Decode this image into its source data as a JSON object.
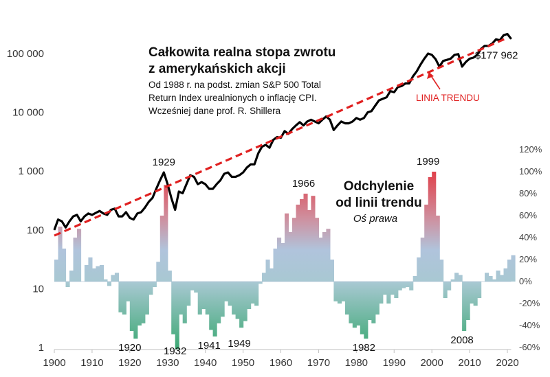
{
  "chart_data": {
    "type": "line",
    "title": "Całkowita realna stopa zwrotu",
    "title_line2": "z amerykańskich akcji",
    "description": [
      "Od 1988 r. na podst. zmian S&P 500 Total",
      "Return Index urealnionych o inflację CPI.",
      "Wcześniej dane prof. R. Shillera"
    ],
    "x_ticks": [
      "1900",
      "1910",
      "1920",
      "1930",
      "1940",
      "1950",
      "1960",
      "1970",
      "1980",
      "1990",
      "2000",
      "2010",
      "2020"
    ],
    "xlim": [
      1900,
      2021
    ],
    "y_left": {
      "scale": "log",
      "ylim": [
        1,
        300000
      ],
      "ticks": [
        {
          "value": 1,
          "label": "1"
        },
        {
          "value": 10,
          "label": "10"
        },
        {
          "value": 100,
          "label": "100"
        },
        {
          "value": 1000,
          "label": "1 000"
        },
        {
          "value": 10000,
          "label": "10 000"
        },
        {
          "value": 100000,
          "label": "100 000"
        }
      ]
    },
    "y_right": {
      "ylim": [
        -60,
        120
      ],
      "ticks": [
        {
          "value": -60,
          "label": "-60%"
        },
        {
          "value": -40,
          "label": "-40%"
        },
        {
          "value": -20,
          "label": "-20%"
        },
        {
          "value": 0,
          "label": "0%"
        },
        {
          "value": 20,
          "label": "20%"
        },
        {
          "value": 40,
          "label": "40%"
        },
        {
          "value": 60,
          "label": "60%"
        },
        {
          "value": 80,
          "label": "80%"
        },
        {
          "value": 100,
          "label": "100%"
        },
        {
          "value": 120,
          "label": "120%"
        }
      ]
    },
    "trend_line": {
      "label": "LINIA TRENDU",
      "x": [
        1900,
        2020
      ],
      "y": [
        80,
        185000
      ],
      "color": "#e02020"
    },
    "deviation_series": {
      "title": "Odchylenie",
      "title_line2": "od linii trendu",
      "subtitle": "Oś prawa",
      "colors": {
        "high": "#e0404a",
        "mid": "#b0c4dc",
        "low": "#3aa872"
      },
      "points": [
        [
          1900,
          20
        ],
        [
          1901,
          50
        ],
        [
          1902,
          30
        ],
        [
          1903,
          -5
        ],
        [
          1904,
          10
        ],
        [
          1905,
          40
        ],
        [
          1906,
          48
        ],
        [
          1907,
          0
        ],
        [
          1908,
          15
        ],
        [
          1909,
          22
        ],
        [
          1910,
          12
        ],
        [
          1911,
          14
        ],
        [
          1912,
          15
        ],
        [
          1913,
          2
        ],
        [
          1914,
          -4
        ],
        [
          1915,
          6
        ],
        [
          1916,
          8
        ],
        [
          1917,
          -28
        ],
        [
          1918,
          -30
        ],
        [
          1919,
          -18
        ],
        [
          1920,
          -45
        ],
        [
          1921,
          -52
        ],
        [
          1922,
          -40
        ],
        [
          1923,
          -38
        ],
        [
          1924,
          -30
        ],
        [
          1925,
          -12
        ],
        [
          1926,
          -5
        ],
        [
          1927,
          18
        ],
        [
          1928,
          60
        ],
        [
          1929,
          88
        ],
        [
          1930,
          10
        ],
        [
          1931,
          -48
        ],
        [
          1932,
          -62
        ],
        [
          1933,
          -30
        ],
        [
          1934,
          -38
        ],
        [
          1935,
          -22
        ],
        [
          1936,
          -8
        ],
        [
          1937,
          -10
        ],
        [
          1938,
          -30
        ],
        [
          1939,
          -25
        ],
        [
          1940,
          -30
        ],
        [
          1941,
          -44
        ],
        [
          1942,
          -50
        ],
        [
          1943,
          -38
        ],
        [
          1944,
          -32
        ],
        [
          1945,
          -18
        ],
        [
          1946,
          -22
        ],
        [
          1947,
          -30
        ],
        [
          1948,
          -34
        ],
        [
          1949,
          -42
        ],
        [
          1950,
          -36
        ],
        [
          1951,
          -25
        ],
        [
          1952,
          -20
        ],
        [
          1953,
          -22
        ],
        [
          1954,
          -2
        ],
        [
          1955,
          8
        ],
        [
          1956,
          20
        ],
        [
          1957,
          12
        ],
        [
          1958,
          30
        ],
        [
          1959,
          40
        ],
        [
          1960,
          35
        ],
        [
          1961,
          62
        ],
        [
          1962,
          45
        ],
        [
          1963,
          58
        ],
        [
          1964,
          70
        ],
        [
          1965,
          75
        ],
        [
          1966,
          80
        ],
        [
          1967,
          65
        ],
        [
          1968,
          78
        ],
        [
          1969,
          58
        ],
        [
          1970,
          40
        ],
        [
          1971,
          45
        ],
        [
          1972,
          48
        ],
        [
          1973,
          20
        ],
        [
          1974,
          -18
        ],
        [
          1975,
          -20
        ],
        [
          1976,
          -18
        ],
        [
          1977,
          -30
        ],
        [
          1978,
          -38
        ],
        [
          1979,
          -42
        ],
        [
          1980,
          -40
        ],
        [
          1981,
          -48
        ],
        [
          1982,
          -52
        ],
        [
          1983,
          -35
        ],
        [
          1984,
          -38
        ],
        [
          1985,
          -30
        ],
        [
          1986,
          -20
        ],
        [
          1987,
          -12
        ],
        [
          1988,
          -20
        ],
        [
          1989,
          -12
        ],
        [
          1990,
          -15
        ],
        [
          1991,
          -8
        ],
        [
          1992,
          -6
        ],
        [
          1993,
          -5
        ],
        [
          1994,
          -8
        ],
        [
          1995,
          5
        ],
        [
          1996,
          22
        ],
        [
          1997,
          40
        ],
        [
          1998,
          70
        ],
        [
          1999,
          95
        ],
        [
          2000,
          100
        ],
        [
          2001,
          60
        ],
        [
          2002,
          20
        ],
        [
          2003,
          -15
        ],
        [
          2004,
          -8
        ],
        [
          2005,
          2
        ],
        [
          2006,
          8
        ],
        [
          2007,
          6
        ],
        [
          2008,
          -45
        ],
        [
          2009,
          -35
        ],
        [
          2010,
          -20
        ],
        [
          2011,
          -22
        ],
        [
          2012,
          -15
        ],
        [
          2013,
          0
        ],
        [
          2014,
          8
        ],
        [
          2015,
          5
        ],
        [
          2016,
          2
        ],
        [
          2017,
          10
        ],
        [
          2018,
          6
        ],
        [
          2019,
          12
        ],
        [
          2020,
          20
        ],
        [
          2021,
          24
        ]
      ]
    },
    "real_return_series": {
      "color": "#000000",
      "points": [
        [
          1900,
          100
        ],
        [
          1901,
          150
        ],
        [
          1902,
          140
        ],
        [
          1903,
          110
        ],
        [
          1904,
          140
        ],
        [
          1905,
          170
        ],
        [
          1906,
          180
        ],
        [
          1907,
          140
        ],
        [
          1908,
          170
        ],
        [
          1909,
          190
        ],
        [
          1910,
          180
        ],
        [
          1911,
          195
        ],
        [
          1912,
          210
        ],
        [
          1913,
          190
        ],
        [
          1914,
          180
        ],
        [
          1915,
          220
        ],
        [
          1916,
          230
        ],
        [
          1917,
          170
        ],
        [
          1918,
          170
        ],
        [
          1919,
          200
        ],
        [
          1920,
          160
        ],
        [
          1921,
          150
        ],
        [
          1922,
          190
        ],
        [
          1923,
          200
        ],
        [
          1924,
          240
        ],
        [
          1925,
          300
        ],
        [
          1926,
          350
        ],
        [
          1927,
          500
        ],
        [
          1928,
          700
        ],
        [
          1929,
          950
        ],
        [
          1930,
          600
        ],
        [
          1931,
          350
        ],
        [
          1932,
          220
        ],
        [
          1933,
          450
        ],
        [
          1934,
          420
        ],
        [
          1935,
          600
        ],
        [
          1936,
          850
        ],
        [
          1937,
          800
        ],
        [
          1938,
          600
        ],
        [
          1939,
          650
        ],
        [
          1940,
          600
        ],
        [
          1941,
          500
        ],
        [
          1942,
          500
        ],
        [
          1943,
          600
        ],
        [
          1944,
          700
        ],
        [
          1945,
          900
        ],
        [
          1946,
          950
        ],
        [
          1947,
          800
        ],
        [
          1948,
          800
        ],
        [
          1949,
          850
        ],
        [
          1950,
          950
        ],
        [
          1951,
          1150
        ],
        [
          1952,
          1300
        ],
        [
          1953,
          1300
        ],
        [
          1954,
          2000
        ],
        [
          1955,
          2600
        ],
        [
          1956,
          2800
        ],
        [
          1957,
          2500
        ],
        [
          1958,
          3400
        ],
        [
          1959,
          3800
        ],
        [
          1960,
          3700
        ],
        [
          1961,
          4800
        ],
        [
          1962,
          4300
        ],
        [
          1963,
          5200
        ],
        [
          1964,
          6000
        ],
        [
          1965,
          6800
        ],
        [
          1966,
          6000
        ],
        [
          1967,
          7000
        ],
        [
          1968,
          7500
        ],
        [
          1969,
          7000
        ],
        [
          1970,
          6500
        ],
        [
          1971,
          7500
        ],
        [
          1972,
          8500
        ],
        [
          1973,
          7500
        ],
        [
          1974,
          5000
        ],
        [
          1975,
          6000
        ],
        [
          1976,
          7000
        ],
        [
          1977,
          6500
        ],
        [
          1978,
          6500
        ],
        [
          1979,
          7000
        ],
        [
          1980,
          8000
        ],
        [
          1981,
          7500
        ],
        [
          1982,
          8000
        ],
        [
          1983,
          10000
        ],
        [
          1984,
          10500
        ],
        [
          1985,
          13000
        ],
        [
          1986,
          16000
        ],
        [
          1987,
          17000
        ],
        [
          1988,
          18000
        ],
        [
          1989,
          23000
        ],
        [
          1990,
          22000
        ],
        [
          1991,
          27000
        ],
        [
          1992,
          28000
        ],
        [
          1993,
          31000
        ],
        [
          1994,
          31000
        ],
        [
          1995,
          41000
        ],
        [
          1996,
          50000
        ],
        [
          1997,
          65000
        ],
        [
          1998,
          82000
        ],
        [
          1999,
          100000
        ],
        [
          2000,
          95000
        ],
        [
          2001,
          80000
        ],
        [
          2002,
          60000
        ],
        [
          2003,
          75000
        ],
        [
          2004,
          78000
        ],
        [
          2005,
          82000
        ],
        [
          2006,
          95000
        ],
        [
          2007,
          98000
        ],
        [
          2008,
          60000
        ],
        [
          2009,
          72000
        ],
        [
          2010,
          82000
        ],
        [
          2011,
          85000
        ],
        [
          2012,
          95000
        ],
        [
          2013,
          120000
        ],
        [
          2014,
          135000
        ],
        [
          2015,
          135000
        ],
        [
          2016,
          148000
        ],
        [
          2017,
          175000
        ],
        [
          2018,
          168000
        ],
        [
          2019,
          205000
        ],
        [
          2020,
          215000
        ],
        [
          2021,
          178000
        ]
      ]
    },
    "annotations": [
      {
        "label": "1929",
        "x": 1929,
        "y": 950,
        "axis": "left",
        "pos": "above"
      },
      {
        "label": "1966",
        "x": 1966,
        "y": 80,
        "axis": "right",
        "pos": "above"
      },
      {
        "label": "1999",
        "x": 1999,
        "y": 100,
        "axis": "right",
        "pos": "above"
      },
      {
        "label": "1920",
        "x": 1920,
        "y": -52,
        "axis": "right",
        "pos": "below"
      },
      {
        "label": "1932",
        "x": 1932,
        "y": -62,
        "axis": "right",
        "pos": "below"
      },
      {
        "label": "1941",
        "x": 1941,
        "y": -50,
        "axis": "right",
        "pos": "below"
      },
      {
        "label": "1949",
        "x": 1949,
        "y": -48,
        "axis": "right",
        "pos": "below"
      },
      {
        "label": "1982",
        "x": 1982,
        "y": -52,
        "axis": "right",
        "pos": "below"
      },
      {
        "label": "2008",
        "x": 2008,
        "y": -45,
        "axis": "right",
        "pos": "below"
      },
      {
        "label": "$177 962",
        "x": 2021,
        "y": 178000,
        "axis": "left",
        "pos": "below-left"
      }
    ],
    "grid": false
  }
}
